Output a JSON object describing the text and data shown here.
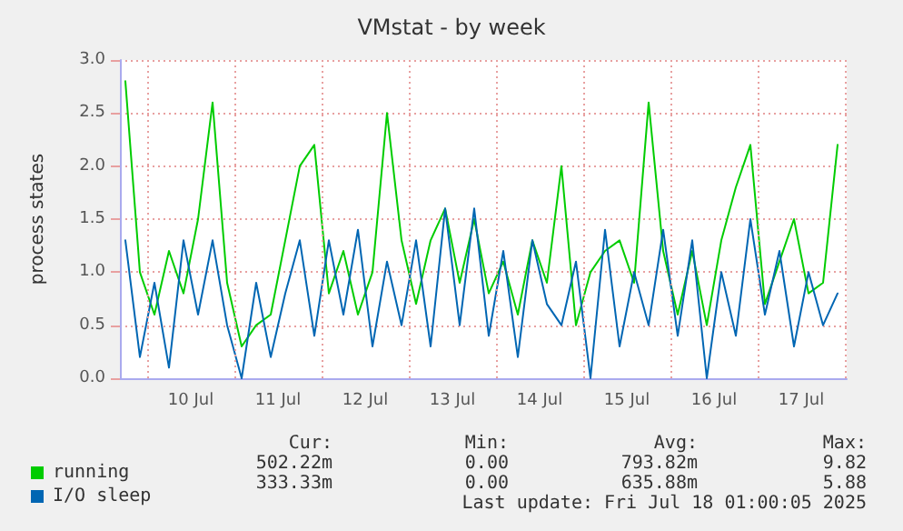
{
  "chart_data": {
    "type": "line",
    "title": "VMstat - by week",
    "ylabel": "process states",
    "x": [
      "2025-07-09T18:00",
      "2025-07-09T22:00",
      "2025-07-10T02:00",
      "2025-07-10T06:00",
      "2025-07-10T10:00",
      "2025-07-10T14:00",
      "2025-07-10T18:00",
      "2025-07-10T22:00",
      "2025-07-11T02:00",
      "2025-07-11T06:00",
      "2025-07-11T10:00",
      "2025-07-11T14:00",
      "2025-07-11T18:00",
      "2025-07-11T22:00",
      "2025-07-12T02:00",
      "2025-07-12T06:00",
      "2025-07-12T10:00",
      "2025-07-12T14:00",
      "2025-07-12T18:00",
      "2025-07-12T22:00",
      "2025-07-13T02:00",
      "2025-07-13T06:00",
      "2025-07-13T10:00",
      "2025-07-13T14:00",
      "2025-07-13T18:00",
      "2025-07-13T22:00",
      "2025-07-14T02:00",
      "2025-07-14T06:00",
      "2025-07-14T10:00",
      "2025-07-14T14:00",
      "2025-07-14T18:00",
      "2025-07-14T22:00",
      "2025-07-15T02:00",
      "2025-07-15T06:00",
      "2025-07-15T10:00",
      "2025-07-15T14:00",
      "2025-07-15T18:00",
      "2025-07-15T22:00",
      "2025-07-16T02:00",
      "2025-07-16T06:00",
      "2025-07-16T10:00",
      "2025-07-16T14:00",
      "2025-07-16T18:00",
      "2025-07-16T22:00",
      "2025-07-17T02:00",
      "2025-07-17T06:00",
      "2025-07-17T10:00",
      "2025-07-17T14:00",
      "2025-07-17T18:00",
      "2025-07-17T22:00"
    ],
    "series": [
      {
        "name": "running",
        "color": "#00cc00",
        "values": [
          2.8,
          1.0,
          0.6,
          1.2,
          0.8,
          1.5,
          2.6,
          0.9,
          0.3,
          0.5,
          0.6,
          1.3,
          2.0,
          2.2,
          0.8,
          1.2,
          0.6,
          1.0,
          2.5,
          1.3,
          0.7,
          1.3,
          1.6,
          0.9,
          1.5,
          0.8,
          1.1,
          0.6,
          1.3,
          0.9,
          2.0,
          0.5,
          1.0,
          1.2,
          1.3,
          0.9,
          2.6,
          1.2,
          0.6,
          1.2,
          0.5,
          1.3,
          1.8,
          2.2,
          0.7,
          1.1,
          1.5,
          0.8,
          0.9,
          2.2
        ]
      },
      {
        "name": "I/O sleep",
        "color": "#0066b3",
        "values": [
          1.3,
          0.2,
          0.9,
          0.1,
          1.3,
          0.6,
          1.3,
          0.5,
          0.0,
          0.9,
          0.2,
          0.8,
          1.3,
          0.4,
          1.3,
          0.6,
          1.4,
          0.3,
          1.1,
          0.5,
          1.3,
          0.3,
          1.6,
          0.5,
          1.6,
          0.4,
          1.2,
          0.2,
          1.3,
          0.7,
          0.5,
          1.1,
          0.0,
          1.4,
          0.3,
          1.0,
          0.5,
          1.4,
          0.4,
          1.3,
          0.0,
          1.0,
          0.4,
          1.5,
          0.6,
          1.2,
          0.3,
          1.0,
          0.5,
          0.8
        ]
      }
    ],
    "xlim": [
      "2025-07-09T16:30",
      "2025-07-18T00:30"
    ],
    "xticks": [
      {
        "value": "2025-07-10T00:00",
        "label": null
      },
      {
        "value": "2025-07-10T12:00",
        "label": "10 Jul"
      },
      {
        "value": "2025-07-11T00:00",
        "label": null
      },
      {
        "value": "2025-07-11T12:00",
        "label": "11 Jul"
      },
      {
        "value": "2025-07-12T00:00",
        "label": null
      },
      {
        "value": "2025-07-12T12:00",
        "label": "12 Jul"
      },
      {
        "value": "2025-07-13T00:00",
        "label": null
      },
      {
        "value": "2025-07-13T12:00",
        "label": "13 Jul"
      },
      {
        "value": "2025-07-14T00:00",
        "label": null
      },
      {
        "value": "2025-07-14T12:00",
        "label": "14 Jul"
      },
      {
        "value": "2025-07-15T00:00",
        "label": null
      },
      {
        "value": "2025-07-15T12:00",
        "label": "15 Jul"
      },
      {
        "value": "2025-07-16T00:00",
        "label": null
      },
      {
        "value": "2025-07-16T12:00",
        "label": "16 Jul"
      },
      {
        "value": "2025-07-17T00:00",
        "label": null
      },
      {
        "value": "2025-07-17T12:00",
        "label": "17 Jul"
      },
      {
        "value": "2025-07-18T00:00",
        "label": null
      }
    ],
    "ylim": [
      0,
      3
    ],
    "yticks": [
      {
        "value": 0,
        "label": "0.0"
      },
      {
        "value": 0.5,
        "label": "0.5"
      },
      {
        "value": 1,
        "label": "1.0"
      },
      {
        "value": 1.5,
        "label": "1.5"
      },
      {
        "value": 2,
        "label": "2.0"
      },
      {
        "value": 2.5,
        "label": "2.5"
      },
      {
        "value": 3,
        "label": "3.0"
      }
    ],
    "grid": true,
    "legend": "bottom left",
    "marker": "none",
    "line_style": "solid",
    "annotations": [
      "Cur:",
      "Min:",
      "Avg:",
      "Max:",
      "502.22m",
      "0.00",
      "793.82m",
      "9.82",
      "333.33m",
      "0.00",
      "635.88m",
      "5.88",
      "Last update: Fri Jul 18 01:00:05 2025"
    ]
  }
}
